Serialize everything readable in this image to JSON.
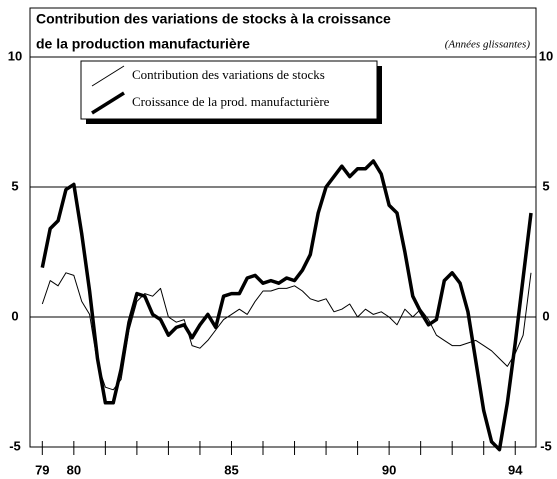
{
  "chart_data": {
    "type": "line",
    "title": "Contribution des variations de stocks à la croissance",
    "title_line2": "de la production manufacturière",
    "subtitle": "(Années glissantes)",
    "x": [
      79.0,
      79.25,
      79.5,
      79.75,
      80.0,
      80.25,
      80.5,
      80.75,
      81.0,
      81.25,
      81.5,
      81.75,
      82.0,
      82.25,
      82.5,
      82.75,
      83.0,
      83.25,
      83.5,
      83.75,
      84.0,
      84.25,
      84.5,
      84.75,
      85.0,
      85.25,
      85.5,
      85.75,
      86.0,
      86.25,
      86.5,
      86.75,
      87.0,
      87.25,
      87.5,
      87.75,
      88.0,
      88.25,
      88.5,
      88.75,
      89.0,
      89.25,
      89.5,
      89.75,
      90.0,
      90.25,
      90.5,
      90.75,
      91.0,
      91.25,
      91.5,
      91.75,
      92.0,
      92.25,
      92.5,
      92.75,
      93.0,
      93.25,
      93.5,
      93.75,
      94.0,
      94.25,
      94.5
    ],
    "series": [
      {
        "name": "Contribution des variations de stocks",
        "color": "#000000",
        "line_width": 1,
        "values": [
          0.5,
          1.4,
          1.2,
          1.7,
          1.6,
          0.6,
          0.1,
          -1.8,
          -2.7,
          -2.8,
          -2.4,
          -0.5,
          0.6,
          0.9,
          0.8,
          1.1,
          0.0,
          -0.2,
          -0.1,
          -1.1,
          -1.2,
          -0.9,
          -0.5,
          -0.1,
          0.1,
          0.3,
          0.1,
          0.6,
          1.0,
          1.0,
          1.1,
          1.1,
          1.2,
          1.0,
          0.7,
          0.6,
          0.7,
          0.2,
          0.3,
          0.5,
          0.0,
          0.3,
          0.1,
          0.2,
          0.0,
          -0.3,
          0.3,
          0.0,
          0.3,
          -0.1,
          -0.7,
          -0.9,
          -1.1,
          -1.1,
          -1.0,
          -0.9,
          -1.1,
          -1.3,
          -1.6,
          -1.9,
          -1.4,
          -0.7,
          1.7
        ]
      },
      {
        "name": "Croissance de la prod. manufacturière",
        "color": "#000000",
        "line_width": 3.5,
        "values": [
          1.9,
          3.4,
          3.7,
          4.9,
          5.1,
          3.2,
          1.0,
          -1.6,
          -3.3,
          -3.3,
          -2.0,
          -0.2,
          0.9,
          0.8,
          0.1,
          -0.1,
          -0.7,
          -0.4,
          -0.3,
          -0.8,
          -0.3,
          0.1,
          -0.4,
          0.8,
          0.9,
          0.9,
          1.5,
          1.6,
          1.3,
          1.4,
          1.3,
          1.5,
          1.4,
          1.8,
          2.4,
          4.0,
          5.0,
          5.4,
          5.8,
          5.4,
          5.7,
          5.7,
          6.0,
          5.5,
          4.3,
          4.0,
          2.5,
          0.8,
          0.2,
          -0.3,
          -0.1,
          1.4,
          1.7,
          1.3,
          0.2,
          -1.7,
          -3.6,
          -4.8,
          -5.1,
          -3.3,
          -1.0,
          1.5,
          4.0
        ]
      }
    ],
    "xlim": [
      78.8,
      94.5
    ],
    "xticks": [
      {
        "value": 79,
        "label": "79"
      },
      {
        "value": 80,
        "label": "80"
      },
      {
        "value": 85,
        "label": "85"
      },
      {
        "value": 90,
        "label": "90"
      },
      {
        "value": 94,
        "label": "94"
      }
    ],
    "xminor_ticks": [
      81,
      82,
      83,
      84,
      86,
      87,
      88,
      89,
      91,
      92,
      93
    ],
    "ylim": [
      -5,
      10
    ],
    "yticks": [
      -5,
      0,
      5,
      10
    ],
    "grid": true
  }
}
